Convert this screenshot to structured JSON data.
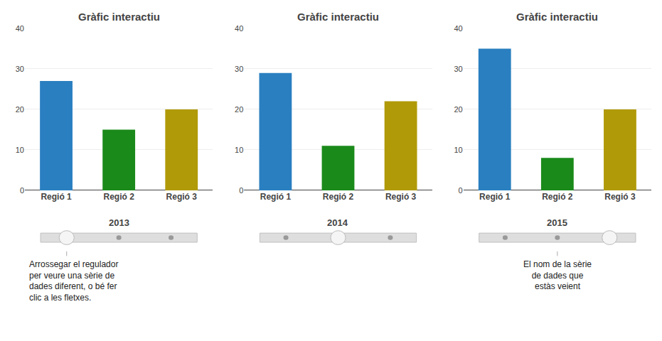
{
  "chart_data": [
    {
      "type": "bar",
      "title": "Gràfic interactiu",
      "xlabel": "2013",
      "categories": [
        "Regió 1",
        "Regió 2",
        "Regió 3"
      ],
      "values": [
        27,
        15,
        20
      ],
      "colors": [
        "#2a7fc0",
        "#1a8a1a",
        "#b09a08"
      ],
      "ylim": [
        0,
        40
      ],
      "yticks": [
        0,
        10,
        20,
        30,
        40
      ],
      "grid": true,
      "annotations": [
        "Arrossegar el regulador\nper veure una sèrie de\ndades diferent, o bé fer\nclic a les fletxes."
      ]
    },
    {
      "type": "bar",
      "title": "Gràfic interactiu",
      "xlabel": "2014",
      "categories": [
        "Regió 1",
        "Regió 2",
        "Regió 3"
      ],
      "values": [
        29,
        11,
        22
      ],
      "colors": [
        "#2a7fc0",
        "#1a8a1a",
        "#b09a08"
      ],
      "ylim": [
        0,
        40
      ],
      "yticks": [
        0,
        10,
        20,
        30,
        40
      ],
      "grid": true
    },
    {
      "type": "bar",
      "title": "Gràfic interactiu",
      "xlabel": "2015",
      "categories": [
        "Regió 1",
        "Regió 2",
        "Regió 3"
      ],
      "values": [
        35,
        8,
        20
      ],
      "colors": [
        "#2a7fc0",
        "#1a8a1a",
        "#b09a08"
      ],
      "ylim": [
        0,
        40
      ],
      "yticks": [
        0,
        10,
        20,
        30,
        40
      ],
      "grid": true,
      "annotations": [
        "El nom de la sèrie\nde dades que\nestàs veient"
      ]
    }
  ]
}
